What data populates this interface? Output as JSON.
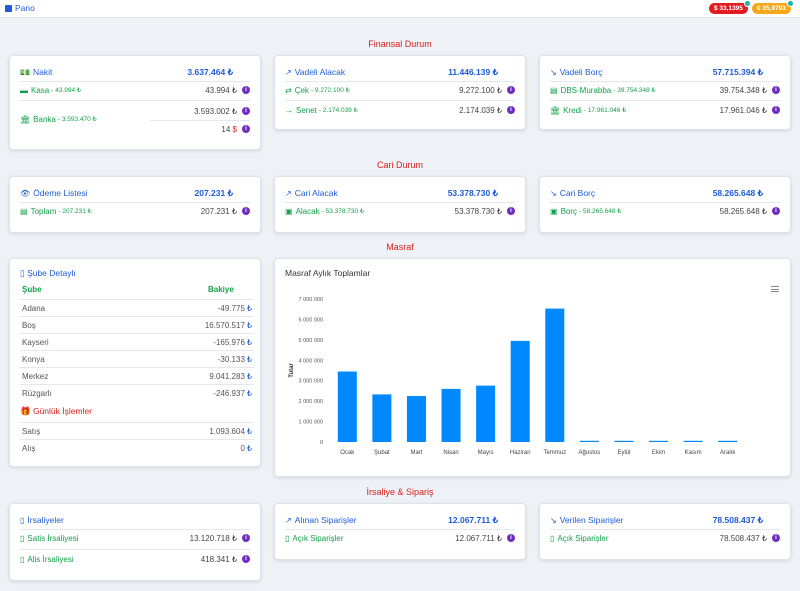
{
  "topbar": {
    "title": "Pano",
    "usd": "$ 33,1395",
    "eur": "€ 35,9793"
  },
  "sections": {
    "finansal": "Finansal Durum",
    "cari": "Cari Durum",
    "masraf": "Masraf",
    "irsaliye": "İrsaliye & Sipariş"
  },
  "colors": {
    "blue": "#1e5bd6",
    "green": "#12a04a",
    "red": "#d9201e",
    "purple": "#6f2dbd",
    "bar": "#0088ff"
  },
  "nakit": {
    "title": "Nakit",
    "total": "3.637.464 ₺",
    "kasa_label": "Kasa",
    "kasa_sub": "- 43.994 ₺",
    "kasa_val": "43.994 ₺",
    "banka_label": "Banka",
    "banka_sub": "- 3.593.470 ₺",
    "banka_val1": "3.593.002 ₺",
    "banka_val2": "14",
    "banka_val2_cur": "$"
  },
  "vadeli_alacak": {
    "title": "Vadeli Alacak",
    "total": "11.446.139 ₺",
    "cek_label": "Çek",
    "cek_sub": "- 9.272.100 ₺",
    "cek_val": "9.272.100 ₺",
    "senet_label": "Senet",
    "senet_sub": "- 2.174.039 ₺",
    "senet_val": "2.174.039 ₺"
  },
  "vadeli_borc": {
    "title": "Vadeli Borç",
    "total": "57.715.394 ₺",
    "dbs_label": "DBS-Murabba",
    "dbs_sub": "- 39.754.348 ₺",
    "dbs_val": "39.754.348 ₺",
    "kredi_label": "Kredi",
    "kredi_sub": "- 17.961.046 ₺",
    "kredi_val": "17.961.046 ₺"
  },
  "odeme": {
    "title": "Ödeme Listesi",
    "total": "207.231 ₺",
    "row_label": "Toplam",
    "row_sub": "- 207.231 ₺",
    "row_val": "207.231 ₺"
  },
  "cari_alacak": {
    "title": "Cari Alacak",
    "total": "53.378.730 ₺",
    "row_label": "Alacak",
    "row_sub": "- 53.378.730 ₺",
    "row_val": "53.378.730 ₺"
  },
  "cari_borc": {
    "title": "Cari Borç",
    "total": "58.265.648 ₺",
    "row_label": "Borç",
    "row_sub": "- 58.265.648 ₺",
    "row_val": "58.265.648 ₺"
  },
  "sube": {
    "title": "Şube Detaylı",
    "col1": "Şube",
    "col2": "Bakiye",
    "rows": [
      {
        "name": "Adana",
        "value": "-49.775"
      },
      {
        "name": "Boş",
        "value": "16.570.517"
      },
      {
        "name": "Kayseri",
        "value": "-165.976"
      },
      {
        "name": "Konya",
        "value": "-30.133"
      },
      {
        "name": "Merkez",
        "value": "9.041.283"
      },
      {
        "name": "Rüzgarlı",
        "value": "-246.937"
      }
    ],
    "currency": "₺"
  },
  "gunluk": {
    "title": "Günlük İşlemler",
    "rows": [
      {
        "name": "Satış",
        "value": "1.093.604"
      },
      {
        "name": "Alış",
        "value": "0"
      }
    ]
  },
  "chart_data": {
    "type": "bar",
    "title": "Masraf Aylık Toplamlar",
    "ylabel": "Tutar",
    "xlabel": "",
    "categories": [
      "Ocak",
      "Şubat",
      "Mart",
      "Nisan",
      "Mayıs",
      "Haziran",
      "Temmuz",
      "Ağustos",
      "Eylül",
      "Ekim",
      "Kasım",
      "Aralık"
    ],
    "values": [
      3450000,
      2330000,
      2250000,
      2600000,
      2760000,
      4950000,
      6530000,
      10000,
      10000,
      10000,
      10000,
      10000
    ],
    "ylim": [
      0,
      7000000
    ],
    "yticks": [
      0,
      1000000,
      2000000,
      3000000,
      4000000,
      5000000,
      6000000,
      7000000
    ],
    "ytick_labels": [
      "0",
      "1 000 000",
      "2 000 000",
      "3 000 000",
      "4 000 000",
      "5 000 000",
      "6 000 000",
      "7 000 000"
    ],
    "grid": false,
    "legend": "none"
  },
  "irsaliyeler": {
    "title": "İrsaliyeler",
    "satis_label": "Satis İrsaliyesi",
    "satis_val": "13.120.718 ₺",
    "alis_label": "Alis İrsaliyesi",
    "alis_val": "418.341 ₺"
  },
  "alinan": {
    "title": "Alınan Siparişler",
    "total": "12.067.711 ₺",
    "row_label": "Açık Siparişler",
    "row_val": "12.067.711 ₺"
  },
  "verilen": {
    "title": "Verilen Siparişler",
    "total": "78.508.437 ₺",
    "row_label": "Açık Siparişler",
    "row_val": "78.508.437 ₺"
  },
  "info_glyph": "i"
}
